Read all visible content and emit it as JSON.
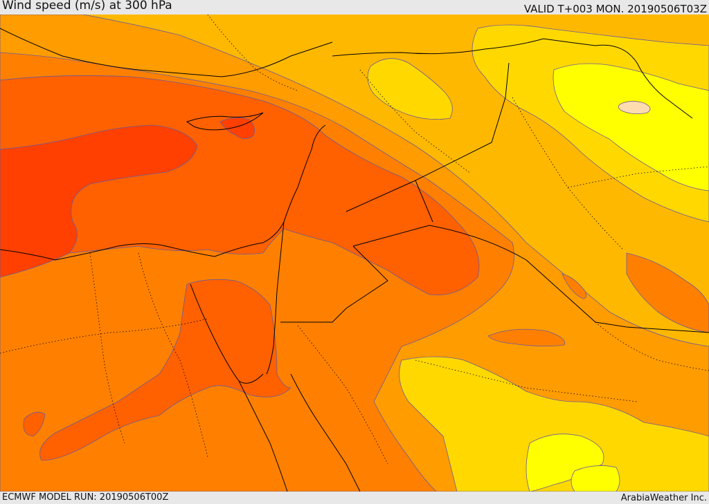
{
  "header": {
    "title": "Wind speed (m/s) at 300 hPa",
    "valid_time": "VALID T+003 MON. 20190506T03Z"
  },
  "footer": {
    "model_run": "ECMWF MODEL RUN: 20190506T00Z",
    "credit": "ArabiaWeather Inc."
  },
  "colors": {
    "band_strongest": "#ff4000",
    "band_strong": "#ff6000",
    "band_mid_high": "#ff8000",
    "band_mid": "#ff9c00",
    "band_mid_low": "#ffb800",
    "band_low": "#ffd800",
    "band_lowest": "#ffff00",
    "band_calm": "#ffdcb0",
    "contour_line": "#6a5a9a",
    "border_line": "#000000"
  }
}
